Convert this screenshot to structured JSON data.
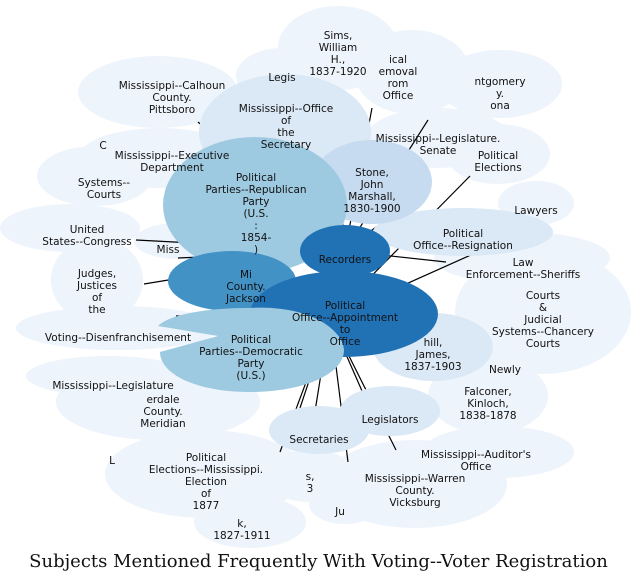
{
  "title": "Subjects Mentioned Frequently With Voting--Voter Registration",
  "colors": {
    "faint": "#eef4fb",
    "pale": "#dbe8f5",
    "light": "#c6dbef",
    "mid": "#9ecae1",
    "strong": "#4292c6",
    "dark": "#2171b5",
    "edge": "#000000"
  },
  "chart_data": {
    "type": "network",
    "center": "Voting--Voter Registration",
    "nodes": [
      {
        "id": "sims",
        "label": "Sims, William H., 1837-1920",
        "tone": "faint"
      },
      {
        "id": "legis_top",
        "label": "Legis...",
        "tone": "faint"
      },
      {
        "id": "removal",
        "label": "...ical ...emoval ...rom Office",
        "tone": "faint"
      },
      {
        "id": "montgomery",
        "label": "...ntgomery ...y. ...ona",
        "tone": "faint"
      },
      {
        "id": "calhoun",
        "label": "Mississippi--Calhoun County. Pittsboro",
        "tone": "faint"
      },
      {
        "id": "office_secretary",
        "label": "Mississippi--Office of the Secretary of State",
        "tone": "pale"
      },
      {
        "id": "legis_senate",
        "label": "Mississippi--Legislature. Senate",
        "tone": "faint"
      },
      {
        "id": "exec_dept",
        "label": "Mississippi--Executive Department",
        "tone": "faint"
      },
      {
        "id": "pol_elections",
        "label": "Political Elections",
        "tone": "faint"
      },
      {
        "id": "systems_courts",
        "label": "Systems--...Courts",
        "tone": "faint"
      },
      {
        "id": "republican",
        "label": "Political Parties--Republican Party (U.S. : 1854- )",
        "tone": "mid"
      },
      {
        "id": "stone",
        "label": "Stone, John Marshall, 1830-1900",
        "tone": "light"
      },
      {
        "id": "lawyers",
        "label": "Lawyers",
        "tone": "faint"
      },
      {
        "id": "congress",
        "label": "United States--Congress",
        "tone": "faint"
      },
      {
        "id": "resignation",
        "label": "Political Office--Resignation",
        "tone": "pale"
      },
      {
        "id": "miss_small",
        "label": "Miss...",
        "tone": "faint"
      },
      {
        "id": "recorders",
        "label": "Recorders",
        "tone": "dark"
      },
      {
        "id": "sheriffs",
        "label": "Law Enforcement--Sheriffs",
        "tone": "faint"
      },
      {
        "id": "judges",
        "label": "Judges, Justices of the",
        "tone": "faint"
      },
      {
        "id": "jackson",
        "label": "Mi... County. Jackson",
        "tone": "strong"
      },
      {
        "id": "appointment",
        "label": "Political Office--Appointment to Office",
        "tone": "dark"
      },
      {
        "id": "chancery",
        "label": "Courts & Judicial Systems--Chancery Courts",
        "tone": "faint"
      },
      {
        "id": "disenfranchisement",
        "label": "Voting--Disenfranchisement",
        "tone": "faint"
      },
      {
        "id": "democratic",
        "label": "Political Parties--Democratic Party (U.S.)",
        "tone": "mid"
      },
      {
        "id": "hill",
        "label": "...hill, James, 1837-1903",
        "tone": "pale"
      },
      {
        "id": "newly",
        "label": "Newly",
        "tone": "faint"
      },
      {
        "id": "legis_left",
        "label": "Mississippi--Legislature",
        "tone": "faint"
      },
      {
        "id": "lauderdale",
        "label": "...erdale County. Meridian",
        "tone": "faint"
      },
      {
        "id": "falconer",
        "label": "Falconer, Kinloch, 1838-1878",
        "tone": "faint"
      },
      {
        "id": "legislators",
        "label": "Legislators",
        "tone": "pale"
      },
      {
        "id": "secretaries",
        "label": "Secretaries",
        "tone": "pale"
      },
      {
        "id": "auditor",
        "label": "Mississippi--Auditor's Office",
        "tone": "faint"
      },
      {
        "id": "pol_elec_miss",
        "label": "Political Elections--Mississippi. Election of 1877",
        "tone": "faint"
      },
      {
        "id": "s3",
        "label": "...s. ...3",
        "tone": "faint"
      },
      {
        "id": "warren",
        "label": "Mississippi--Warren County. Vicksburg",
        "tone": "faint"
      },
      {
        "id": "ju",
        "label": "Ju...",
        "tone": "faint"
      },
      {
        "id": "p1827",
        "label": "...k, 1827-1911",
        "tone": "faint"
      }
    ]
  },
  "labels": {
    "sims": [
      "Sims,",
      "William",
      "H.,",
      "1837-1920"
    ],
    "legis_top": [
      "Legis"
    ],
    "removal": [
      "ical",
      "emoval",
      "rom",
      "Office"
    ],
    "montgomery": [
      "ntgomery",
      "y.",
      "ona"
    ],
    "calhoun": [
      "Mississippi--Calhoun",
      "County.",
      "Pittsboro"
    ],
    "office_secretary": [
      "Mississippi--Office",
      "of",
      "the",
      "Secretary"
    ],
    "legis_senate": [
      "Mississippi--Legislature.",
      "Senate"
    ],
    "exec_dept": [
      "Mississippi--Executive",
      "Department"
    ],
    "c_frag": [
      "C"
    ],
    "pol_elections": [
      "Political",
      "Elections"
    ],
    "systems_courts": [
      "Systems--",
      "Courts"
    ],
    "republican": [
      "Political",
      "Parties--Republican",
      "Party",
      "(U.S.",
      ":",
      "1854-",
      ")"
    ],
    "stone": [
      "Stone,",
      "John",
      "Marshall,",
      "1830-1900"
    ],
    "lawyers": [
      "Lawyers"
    ],
    "congress": [
      "United",
      "States--Congress"
    ],
    "resignation": [
      "Political",
      "Office--Resignation"
    ],
    "miss_small": [
      "Miss"
    ],
    "recorders": [
      "Recorders"
    ],
    "sheriffs": [
      "Law",
      "Enforcement--Sheriffs"
    ],
    "judges": [
      "Judges,",
      "Justices",
      "of",
      "the"
    ],
    "jackson": [
      "Mi",
      "County.",
      "Jackson"
    ],
    "appointment": [
      "Political",
      "Office--Appointment",
      "to",
      "Office"
    ],
    "chancery": [
      "Courts",
      "&",
      "Judicial",
      "Systems--Chancery",
      "Courts"
    ],
    "disenfranchisement": [
      "Voting--Disenfranchisement"
    ],
    "democratic": [
      "Political",
      "Parties--Democratic",
      "Party",
      "(U.S.)"
    ],
    "hill": [
      "hill,",
      "James,",
      "1837-1903"
    ],
    "newly": [
      "Newly"
    ],
    "legis_left": [
      "Mississippi--Legislature"
    ],
    "lauderdale": [
      "erdale",
      "County.",
      "Meridian"
    ],
    "falconer": [
      "Falconer,",
      "Kinloch,",
      "1838-1878"
    ],
    "legislators": [
      "Legislators"
    ],
    "secretaries": [
      "Secretaries"
    ],
    "auditor": [
      "Mississippi--Auditor's",
      "Office"
    ],
    "pol_elec_miss": [
      "Political",
      "Elections--Mississippi.",
      "Election",
      "of",
      "1877"
    ],
    "s3": [
      "s,",
      "3"
    ],
    "warren": [
      "Mississippi--Warren",
      "County.",
      "Vicksburg"
    ],
    "ju": [
      "Ju"
    ],
    "p1827": [
      "k,",
      "1827-1911"
    ],
    "l_frag": [
      "L"
    ]
  }
}
